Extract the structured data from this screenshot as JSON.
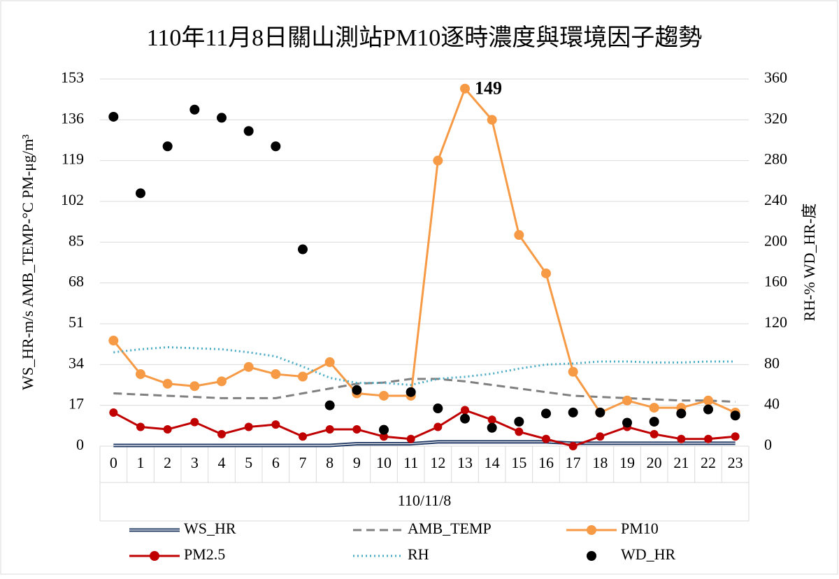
{
  "chart_data": {
    "type": "combo",
    "title": "110年11月8日關山測站PM10逐時濃度與環境因子趨勢",
    "y_label": "WS_HR-m/s  AMB_TEMP-°C  PM-μg/m³",
    "y2_label": "RH-%  WD_HR-度",
    "group_label": "110/11/8",
    "categories": [
      "0",
      "1",
      "2",
      "3",
      "4",
      "5",
      "6",
      "7",
      "8",
      "9",
      "10",
      "11",
      "12",
      "13",
      "14",
      "15",
      "16",
      "17",
      "18",
      "19",
      "20",
      "21",
      "22",
      "23"
    ],
    "ylim": [
      0,
      153
    ],
    "yticks": [
      0,
      17,
      34,
      51,
      68,
      85,
      102,
      119,
      136,
      153
    ],
    "y2lim": [
      0,
      360
    ],
    "y2ticks": [
      0,
      40,
      80,
      120,
      160,
      200,
      240,
      280,
      320,
      360
    ],
    "series": [
      {
        "name": "WS_HR",
        "color": "#1f3864",
        "line": "double",
        "marker": false,
        "values": [
          0.3,
          0.3,
          0.3,
          0.3,
          0.3,
          0.3,
          0.3,
          0.3,
          0.3,
          1,
          1,
          1,
          1.8,
          1.8,
          1.8,
          1.8,
          1.8,
          1.2,
          1.2,
          1.2,
          1.2,
          1.2,
          1.2,
          1.2
        ]
      },
      {
        "name": "AMB_TEMP",
        "color": "#808080",
        "line": "dashed",
        "marker": false,
        "values": [
          22,
          21.5,
          21,
          20.5,
          20,
          20,
          20,
          22,
          24,
          26,
          26.5,
          28,
          28,
          27,
          25.5,
          24,
          22.5,
          21,
          20.5,
          20,
          19.5,
          19,
          19,
          18.5
        ]
      },
      {
        "name": "PM10",
        "color": "#f79a46",
        "line": "solid",
        "marker": true,
        "values": [
          44,
          30,
          26,
          25,
          27,
          33,
          30,
          29,
          35,
          22,
          21,
          21,
          119,
          149,
          136,
          88,
          72,
          31,
          14,
          19,
          16,
          16,
          19,
          14
        ],
        "value_labels": [
          null,
          null,
          null,
          null,
          null,
          null,
          null,
          null,
          null,
          null,
          null,
          null,
          null,
          "149",
          null,
          null,
          null,
          null,
          null,
          null,
          null,
          null,
          null,
          null
        ]
      },
      {
        "name": "PM2.5",
        "color": "#c00000",
        "line": "solid",
        "marker": true,
        "values": [
          14,
          8,
          7,
          10,
          5,
          8,
          9,
          4,
          7,
          7,
          4,
          3,
          8,
          15,
          11,
          6,
          3,
          0,
          4,
          8,
          5,
          3,
          3,
          4
        ]
      },
      {
        "name": "RH",
        "color": "#4bacc6",
        "line": "dotted",
        "marker": false,
        "axis": "y2",
        "values": [
          92,
          95,
          97,
          96,
          95,
          92,
          88,
          78,
          67,
          62,
          62,
          60,
          66,
          68,
          71,
          76,
          80,
          81,
          83,
          83,
          82,
          82,
          83,
          83
        ]
      },
      {
        "name": "WD_HR",
        "color": "#000000",
        "line": "none",
        "marker": true,
        "axis": "y2",
        "values": [
          323,
          248,
          294,
          330,
          322,
          309,
          294,
          193,
          40,
          55,
          16,
          53,
          37,
          27,
          18,
          24,
          32,
          33,
          33,
          23,
          24,
          32,
          36,
          30
        ]
      }
    ],
    "grid": true
  }
}
